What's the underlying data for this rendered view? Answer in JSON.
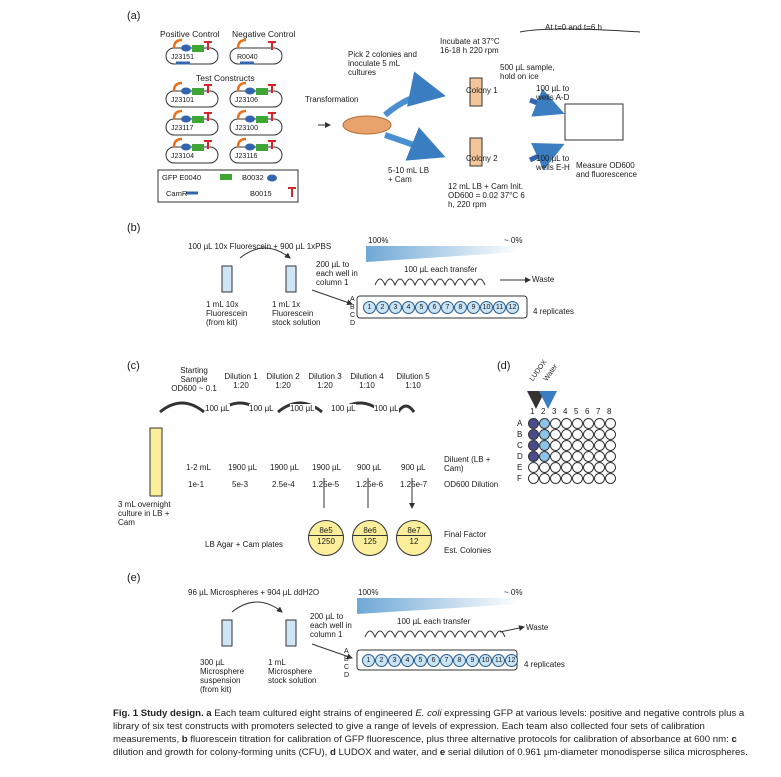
{
  "panels": {
    "a": {
      "label": "(a)",
      "positive_control": "Positive Control",
      "negative_control": "Negative Control",
      "pos_plasmid": "J23151",
      "neg_plasmid": "R0040",
      "test_constructs": "Test Constructs",
      "constructs": [
        "J23101",
        "J23106",
        "J23117",
        "J23100",
        "J23104",
        "J23116"
      ],
      "legend": [
        "GFP E0040",
        "B0032",
        "CamR",
        "B0015"
      ],
      "transformation": "Transformation",
      "pick": "Pick 2 colonies and inoculate 5 mL cultures",
      "incubate": "Incubate at 37°C 16-18 h 220 rpm",
      "at_times": "At t=0 and t=6 h",
      "sample": "500 µL sample, hold on ice",
      "colony1": "Colony 1",
      "colony2": "Colony 2",
      "wells_ad": "100 µL to wells A-D",
      "wells_eh": "100 µL to wells E-H",
      "measure": "Measure OD600 and fluorescence",
      "lb_cam": "5-10 mL LB + Cam",
      "dilute": "12 mL LB + Cam Init. OD600 = 0.02 37°C 6 h, 220 rpm"
    },
    "b": {
      "label": "(b)",
      "mix": "100 µL 10x Fluorescein + 900 µL 1xPBS",
      "pct_high": "100%",
      "pct_low": "~ 0%",
      "to_col1": "200 µL to each well in column 1",
      "each_transfer": "100 µL each transfer",
      "waste": "Waste",
      "tube1": "1 mL 10x Fluorescein (from kit)",
      "tube2": "1 mL 1x Fluorescein stock solution",
      "replicates": "4 replicates",
      "rows": "A B C D",
      "wells": [
        "1",
        "2",
        "3",
        "4",
        "5",
        "6",
        "7",
        "8",
        "9",
        "10",
        "11",
        "12"
      ]
    },
    "c": {
      "label": "(c)",
      "starting": "Starting Sample OD600 ~ 0.1",
      "dilutions": [
        "Dilution 1 1:20",
        "Dilution 2 1:20",
        "Dilution 3 1:20",
        "Dilution 4 1:10",
        "Dilution 5 1:10"
      ],
      "transfer": "100 µL",
      "volumes": [
        "1-2 mL",
        "1900 µL",
        "1900 µL",
        "1900 µL",
        "900 µL",
        "900 µL"
      ],
      "od_values": [
        "1e-1",
        "5e-3",
        "2.5e-4",
        "1.25e-5",
        "1.25e-6",
        "1.25e-7"
      ],
      "diluent": "Diluent (LB + Cam)",
      "od_dilution": "OD600 Dilution",
      "overnight": "3 mL overnight culture in LB + Cam",
      "plates": "LB Agar + Cam plates",
      "factors": [
        "8e5",
        "8e6",
        "8e7"
      ],
      "colonies": [
        "1250",
        "125",
        "12"
      ],
      "final_factor": "Final Factor",
      "est_colonies": "Est. Colonies"
    },
    "d": {
      "label": "(d)",
      "ludox": "LUDOX",
      "water": "Water",
      "cols": [
        "1",
        "2",
        "3",
        "4",
        "5",
        "6",
        "7",
        "8"
      ],
      "rows": [
        "A",
        "B",
        "C",
        "D",
        "E",
        "F"
      ]
    },
    "e": {
      "label": "(e)",
      "mix": "96 µL Microspheres + 904 µL ddH2O",
      "pct_high": "100%",
      "pct_low": "~ 0%",
      "to_col1": "200 µL to each well in column 1",
      "each_transfer": "100 µL each transfer",
      "waste": "Waste",
      "tube1": "300 µL Microsphere suspension (from kit)",
      "tube2": "1 mL Microsphere stock solution",
      "replicates": "4 replicates"
    }
  },
  "caption": {
    "lead": "Fig. 1 Study design.",
    "a": "a",
    "text_a": " Each team cultured eight strains of engineered ",
    "ecoli": "E. coli",
    "text_a2": " expressing GFP at various levels: positive and negative controls plus a library of six test constructs with promoters selected to give a range of levels of expression. Each team also collected four sets of calibration measurements, ",
    "b": "b",
    "text_b": " fluorescein titration for calibration of GFP fluorescence, plus three alternative protocols for calibration of absorbance at 600 nm: ",
    "c": "c",
    "text_c": " dilution and growth for colony-forming units (CFU), ",
    "d": "d",
    "text_d": " LUDOX and water, and ",
    "e": "e",
    "text_e": " serial dilution of 0.961 µm-diameter monodisperse silica microspheres."
  },
  "colors": {
    "gfp": "#3fa535",
    "rbs": "#3466b0",
    "term": "#d6262b",
    "prom": "#e8731d",
    "well": "#c9e4f5",
    "yellow": "#fbee9a"
  }
}
